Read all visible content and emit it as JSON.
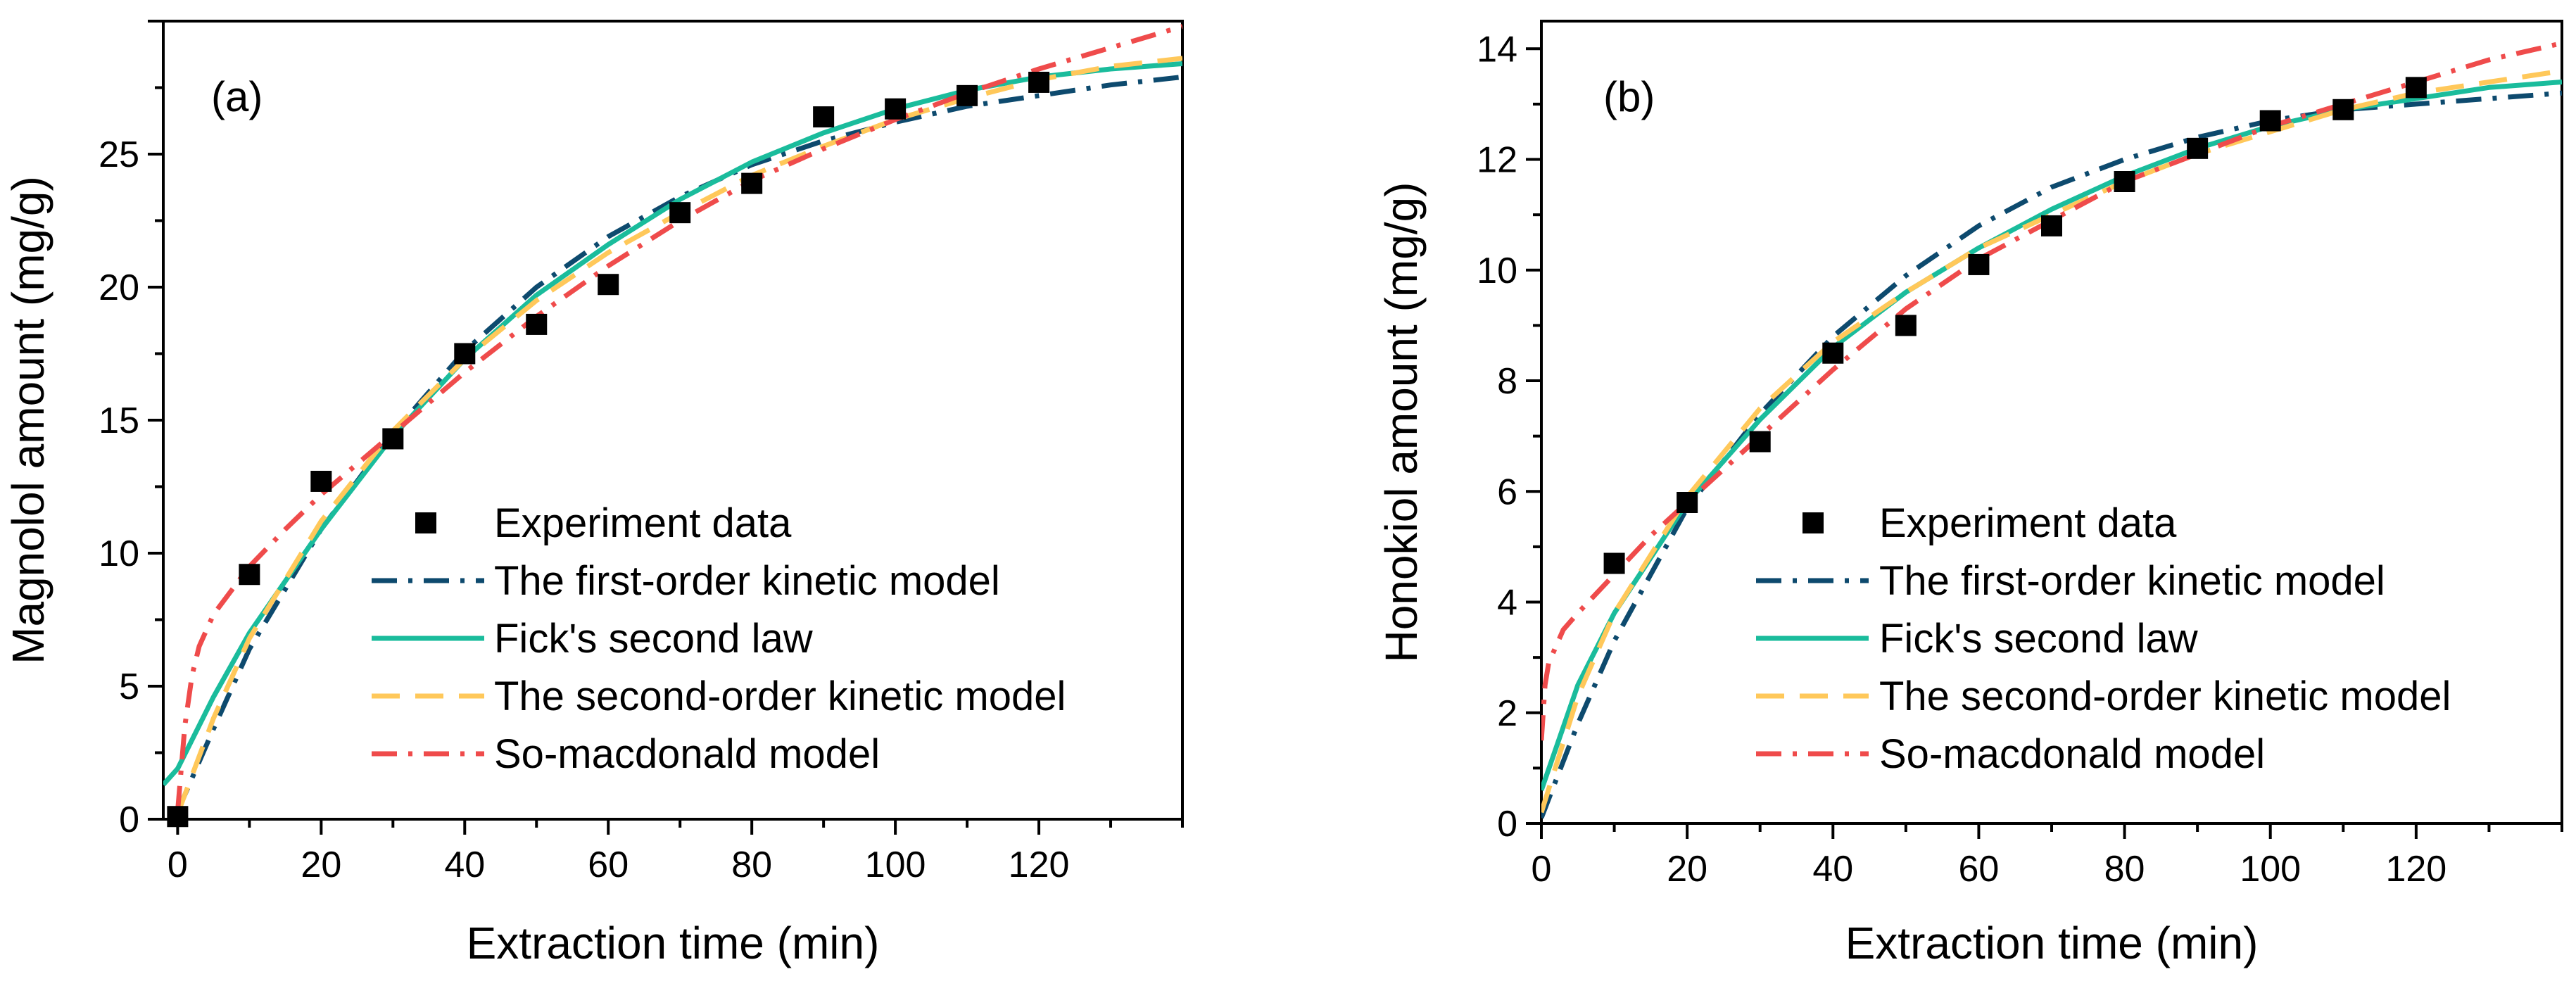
{
  "chart_data": [
    {
      "type": "line",
      "panel_label": "(a)",
      "xlabel": "Extraction time (min)",
      "ylabel": "Magnolol amount (mg/g)",
      "xlim": [
        -2,
        140
      ],
      "ylim": [
        0,
        30
      ],
      "xticks": [
        0,
        20,
        40,
        60,
        80,
        100,
        120
      ],
      "yticks": [
        0,
        5,
        10,
        15,
        20,
        25
      ],
      "xtick_labels": [
        "0",
        "20",
        "40",
        "60",
        "80",
        "100",
        "120"
      ],
      "ytick_labels": [
        "0",
        "5",
        "10",
        "15",
        "20",
        "25"
      ],
      "legend_position": "center-right",
      "series": [
        {
          "name": "Experiment data",
          "kind": "scatter",
          "color": "#000000",
          "x": [
            0,
            10,
            20,
            30,
            40,
            50,
            60,
            70,
            80,
            90,
            100,
            110,
            120
          ],
          "y": [
            0.1,
            9.2,
            12.7,
            14.3,
            17.5,
            18.6,
            20.1,
            22.8,
            23.9,
            26.4,
            26.7,
            27.2,
            27.7
          ]
        },
        {
          "name": "The first-order kinetic model",
          "kind": "line",
          "style": "dashdot",
          "color": "#0d4a6e",
          "x": [
            0,
            5,
            10,
            20,
            30,
            40,
            50,
            60,
            70,
            80,
            90,
            100,
            110,
            120,
            130,
            140
          ],
          "y": [
            0.3,
            3.4,
            6.4,
            10.9,
            14.5,
            17.6,
            20.0,
            21.9,
            23.4,
            24.6,
            25.5,
            26.2,
            26.8,
            27.2,
            27.6,
            27.9
          ]
        },
        {
          "name": "Fick's second law",
          "kind": "line",
          "style": "solid",
          "color": "#1abc9c",
          "x": [
            -2,
            0,
            5,
            10,
            20,
            30,
            40,
            50,
            60,
            70,
            80,
            90,
            100,
            110,
            120,
            130,
            140
          ],
          "y": [
            1.3,
            1.9,
            4.6,
            7.0,
            10.9,
            14.4,
            17.3,
            19.7,
            21.6,
            23.3,
            24.7,
            25.8,
            26.7,
            27.4,
            27.9,
            28.2,
            28.4
          ]
        },
        {
          "name": "The second-order kinetic model",
          "kind": "line",
          "style": "dashed",
          "color": "#ffc85a",
          "x": [
            0,
            5,
            10,
            20,
            30,
            40,
            50,
            60,
            70,
            80,
            90,
            100,
            110,
            120,
            130,
            140
          ],
          "y": [
            0.2,
            3.8,
            6.8,
            11.2,
            14.6,
            17.3,
            19.5,
            21.3,
            22.8,
            24.2,
            25.3,
            26.3,
            27.1,
            27.8,
            28.3,
            28.6
          ]
        },
        {
          "name": "So-macdonald model",
          "kind": "line",
          "style": "dashdot",
          "color": "#ef4b4b",
          "x": [
            0,
            1,
            2,
            3,
            5,
            10,
            15,
            20,
            30,
            40,
            50,
            60,
            70,
            80,
            90,
            100,
            110,
            120,
            130,
            140
          ],
          "y": [
            0.3,
            3.5,
            5.4,
            6.5,
            7.7,
            9.5,
            10.9,
            12.2,
            14.5,
            16.8,
            18.9,
            20.8,
            22.5,
            24.0,
            25.2,
            26.3,
            27.3,
            28.2,
            29.0,
            29.8
          ]
        }
      ]
    },
    {
      "type": "line",
      "panel_label": "(b)",
      "xlabel": "Extraction time (min)",
      "ylabel": "Honokiol amount (mg/g)",
      "xlim": [
        0,
        140
      ],
      "ylim": [
        0,
        14.5
      ],
      "xticks": [
        0,
        20,
        40,
        60,
        80,
        100,
        120
      ],
      "yticks": [
        0,
        2,
        4,
        6,
        8,
        10,
        12,
        14
      ],
      "xtick_labels": [
        "0",
        "20",
        "40",
        "60",
        "80",
        "100",
        "120"
      ],
      "ytick_labels": [
        "0",
        "2",
        "4",
        "6",
        "8",
        "10",
        "12",
        "14"
      ],
      "legend_position": "center-right",
      "series": [
        {
          "name": "Experiment data",
          "kind": "scatter",
          "color": "#000000",
          "x": [
            10,
            20,
            30,
            40,
            50,
            60,
            70,
            80,
            90,
            100,
            110,
            120
          ],
          "y": [
            4.7,
            5.8,
            6.9,
            8.5,
            9.0,
            10.1,
            10.8,
            11.6,
            12.2,
            12.7,
            12.9,
            13.3
          ]
        },
        {
          "name": "The first-order kinetic model",
          "kind": "line",
          "style": "dashdot",
          "color": "#0d4a6e",
          "x": [
            0,
            5,
            10,
            20,
            30,
            40,
            50,
            60,
            70,
            80,
            90,
            100,
            110,
            120,
            130,
            140
          ],
          "y": [
            0.1,
            1.8,
            3.3,
            5.7,
            7.4,
            8.8,
            9.9,
            10.8,
            11.5,
            12.0,
            12.4,
            12.7,
            12.9,
            13.0,
            13.1,
            13.2
          ]
        },
        {
          "name": "Fick's second law",
          "kind": "line",
          "style": "solid",
          "color": "#1abc9c",
          "x": [
            0,
            5,
            10,
            20,
            30,
            40,
            50,
            60,
            70,
            80,
            90,
            100,
            110,
            120,
            130,
            140
          ],
          "y": [
            0.6,
            2.5,
            3.8,
            5.8,
            7.3,
            8.6,
            9.6,
            10.4,
            11.1,
            11.7,
            12.2,
            12.6,
            12.9,
            13.1,
            13.3,
            13.4
          ]
        },
        {
          "name": "The second-order kinetic model",
          "kind": "line",
          "style": "dashed",
          "color": "#ffc85a",
          "x": [
            0,
            5,
            10,
            20,
            30,
            40,
            50,
            60,
            70,
            80,
            90,
            100,
            110,
            120,
            130,
            140
          ],
          "y": [
            0.2,
            2.3,
            3.8,
            5.9,
            7.5,
            8.7,
            9.6,
            10.4,
            11.0,
            11.6,
            12.1,
            12.5,
            12.9,
            13.2,
            13.4,
            13.6
          ]
        },
        {
          "name": "So-macdonald model",
          "kind": "line",
          "style": "dashdot",
          "color": "#ef4b4b",
          "x": [
            0,
            0.5,
            1,
            2,
            3,
            5,
            10,
            15,
            20,
            30,
            40,
            50,
            60,
            70,
            80,
            90,
            100,
            110,
            120,
            130,
            140
          ],
          "y": [
            1.5,
            2.5,
            2.9,
            3.2,
            3.5,
            3.8,
            4.5,
            5.2,
            5.8,
            7.0,
            8.2,
            9.3,
            10.2,
            10.9,
            11.6,
            12.1,
            12.6,
            13.0,
            13.4,
            13.8,
            14.1
          ]
        }
      ]
    }
  ]
}
